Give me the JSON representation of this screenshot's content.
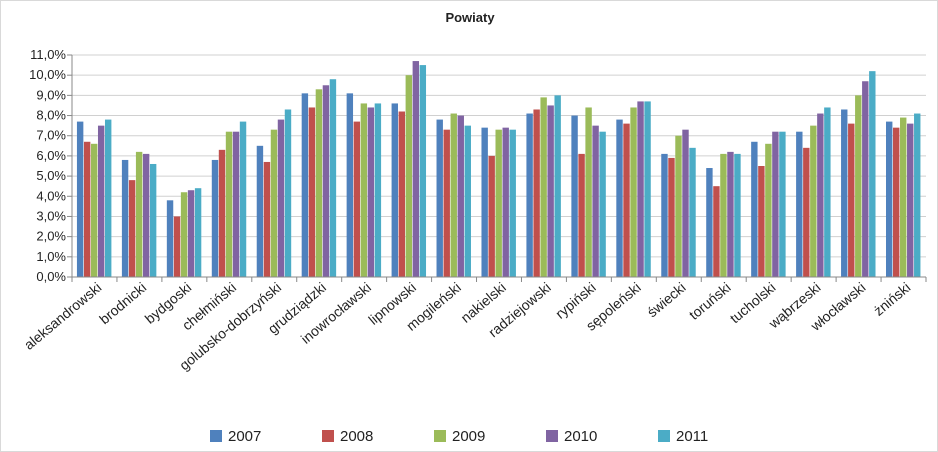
{
  "chart_data": {
    "type": "bar",
    "title": "Powiaty",
    "xlabel": "",
    "ylabel": "",
    "ylim": [
      0,
      11
    ],
    "y_ticks": [
      "0,0%",
      "1,0%",
      "2,0%",
      "3,0%",
      "4,0%",
      "5,0%",
      "6,0%",
      "7,0%",
      "8,0%",
      "9,0%",
      "10,0%",
      "11,0%"
    ],
    "grid": true,
    "legend_position": "bottom",
    "categories": [
      "aleksandrowski",
      "brodnicki",
      "bydgoski",
      "chełmiński",
      "golubsko-dobrzyński",
      "grudziądzki",
      "inowrocławski",
      "lipnowski",
      "mogileński",
      "nakielski",
      "radziejowski",
      "rypiński",
      "sępoleński",
      "świecki",
      "toruński",
      "tucholski",
      "wąbrzeski",
      "włocławski",
      "żniński"
    ],
    "series": [
      {
        "name": "2007",
        "color": "#4f81bd",
        "values": [
          7.7,
          5.8,
          3.8,
          5.8,
          6.5,
          9.1,
          9.1,
          8.6,
          7.8,
          7.4,
          8.1,
          8.0,
          7.8,
          6.1,
          5.4,
          6.7,
          7.2,
          8.3,
          7.7
        ]
      },
      {
        "name": "2008",
        "color": "#c0504d",
        "values": [
          6.7,
          4.8,
          3.0,
          6.3,
          5.7,
          8.4,
          7.7,
          8.2,
          7.3,
          6.0,
          8.3,
          6.1,
          7.6,
          5.9,
          4.5,
          5.5,
          6.4,
          7.6,
          7.4
        ]
      },
      {
        "name": "2009",
        "color": "#9bbb59",
        "values": [
          6.6,
          6.2,
          4.2,
          7.2,
          7.3,
          9.3,
          8.6,
          10.0,
          8.1,
          7.3,
          8.9,
          8.4,
          8.4,
          7.0,
          6.1,
          6.6,
          7.5,
          9.0,
          7.9
        ]
      },
      {
        "name": "2010",
        "color": "#8064a2",
        "values": [
          7.5,
          6.1,
          4.3,
          7.2,
          7.8,
          9.5,
          8.4,
          10.7,
          8.0,
          7.4,
          8.5,
          7.5,
          8.7,
          7.3,
          6.2,
          7.2,
          8.1,
          9.7,
          7.6
        ]
      },
      {
        "name": "2011",
        "color": "#4bacc6",
        "values": [
          7.8,
          5.6,
          4.4,
          7.7,
          8.3,
          9.8,
          8.6,
          10.5,
          7.5,
          7.3,
          9.0,
          7.2,
          8.7,
          6.4,
          6.1,
          7.2,
          8.4,
          10.2,
          8.1
        ]
      }
    ]
  }
}
